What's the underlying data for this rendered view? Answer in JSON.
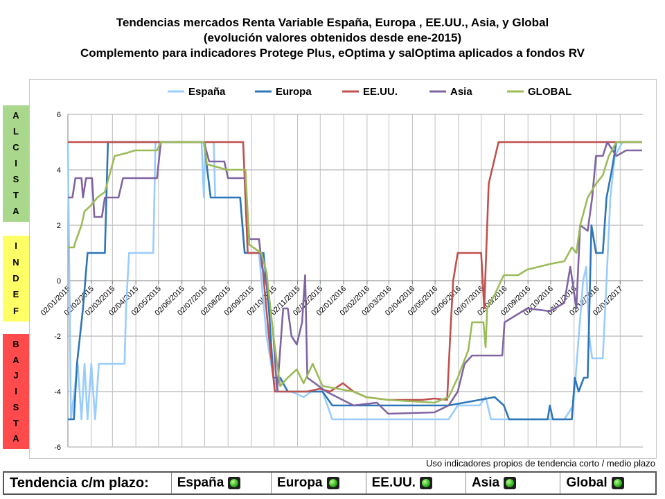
{
  "title": {
    "line1": "Tendencias mercados Renta Variable España, Europa , EE.UU., Asia, y Global",
    "line2": "(evolución valores  obtenidos desde ene-2015)",
    "line3": "Complemento para indicadores Protege Plus, eOptima y salOptima aplicados a fondos RV"
  },
  "zones": {
    "alcista": [
      "A",
      "L",
      "C",
      "I",
      "S",
      "T",
      "A"
    ],
    "indef": [
      "I",
      "N",
      "D",
      "E",
      "F"
    ],
    "bajista": [
      "B",
      "A",
      "J",
      "I",
      "S",
      "T",
      "A"
    ]
  },
  "footnote": "Uso indicadores propios de tendencia corto / medio plazo",
  "status_bar": {
    "label": "Tendencia c/m plazo:",
    "regions": [
      "España",
      "Europa",
      "EE.UU.",
      "Asia",
      "Global"
    ],
    "status_color": "#2fb11a"
  },
  "chart_data": {
    "type": "line",
    "ylim": [
      -6,
      6
    ],
    "yticks": [
      -6,
      -4,
      -2,
      0,
      2,
      4,
      6
    ],
    "xticks": [
      "02/01/2015",
      "02/02/2015",
      "02/03/2015",
      "02/04/2015",
      "02/05/2015",
      "02/06/2015",
      "02/07/2015",
      "02/08/2015",
      "02/09/2015",
      "02/10/2015",
      "02/11/2015",
      "02/12/2015",
      "02/01/2016",
      "02/02/2016",
      "02/03/2016",
      "02/04/2016",
      "02/05/2016",
      "02/06/2016",
      "02/07/2016",
      "02/08/2016",
      "02/09/2016",
      "02/10/2016",
      "02/11/2016",
      "02/12/2016",
      "02/01/2017"
    ],
    "grid": true,
    "legend_position": "top",
    "series": [
      {
        "name": "España",
        "color": "#99ccff",
        "points": [
          [
            "2015-01-02",
            5
          ],
          [
            "2015-01-06",
            -5
          ],
          [
            "2015-01-15",
            -3
          ],
          [
            "2015-01-20",
            -5
          ],
          [
            "2015-01-24",
            -3
          ],
          [
            "2015-01-28",
            -5
          ],
          [
            "2015-02-02",
            -3
          ],
          [
            "2015-02-07",
            -5
          ],
          [
            "2015-02-12",
            -3
          ],
          [
            "2015-03-18",
            -3
          ],
          [
            "2015-03-20",
            -1
          ],
          [
            "2015-03-24",
            1
          ],
          [
            "2015-04-25",
            1
          ],
          [
            "2015-04-28",
            5
          ],
          [
            "2015-06-28",
            5
          ],
          [
            "2015-07-01",
            3
          ],
          [
            "2015-07-03",
            5
          ],
          [
            "2015-07-14",
            5
          ],
          [
            "2015-07-16",
            3
          ],
          [
            "2015-07-25",
            3
          ],
          [
            "2015-08-05",
            3
          ],
          [
            "2015-08-18",
            3
          ],
          [
            "2015-08-24",
            1
          ],
          [
            "2015-09-12",
            1
          ],
          [
            "2015-09-22",
            -2
          ],
          [
            "2015-10-01",
            -3.5
          ],
          [
            "2015-10-08",
            -4
          ],
          [
            "2015-10-25",
            -4
          ],
          [
            "2015-11-10",
            -4.2
          ],
          [
            "2015-11-20",
            -4
          ],
          [
            "2015-12-05",
            -4
          ],
          [
            "2015-12-18",
            -5
          ],
          [
            "2016-05-20",
            -5
          ],
          [
            "2016-06-01",
            -4.5
          ],
          [
            "2016-06-30",
            -4.5
          ],
          [
            "2016-07-08",
            -4.2
          ],
          [
            "2016-07-15",
            -5
          ],
          [
            "2016-10-20",
            -5
          ],
          [
            "2016-11-01",
            -4.5
          ],
          [
            "2016-11-14",
            0
          ],
          [
            "2016-11-18",
            0.5
          ],
          [
            "2016-11-22",
            -2
          ],
          [
            "2016-11-26",
            -2.8
          ],
          [
            "2016-12-10",
            -2.8
          ],
          [
            "2016-12-15",
            0
          ],
          [
            "2016-12-20",
            3
          ],
          [
            "2016-12-26",
            4.5
          ],
          [
            "2017-01-05",
            5
          ],
          [
            "2017-01-31",
            5
          ]
        ]
      },
      {
        "name": "Europa",
        "color": "#2e75b6",
        "points": [
          [
            "2015-01-02",
            -5
          ],
          [
            "2015-01-10",
            -5
          ],
          [
            "2015-01-14",
            -3
          ],
          [
            "2015-01-22",
            -1
          ],
          [
            "2015-01-28",
            1
          ],
          [
            "2015-02-20",
            1
          ],
          [
            "2015-02-24",
            5
          ],
          [
            "2015-07-01",
            5
          ],
          [
            "2015-07-10",
            3
          ],
          [
            "2015-08-18",
            3
          ],
          [
            "2015-08-24",
            1
          ],
          [
            "2015-09-18",
            1
          ],
          [
            "2015-09-25",
            -1
          ],
          [
            "2015-10-01",
            -3.5
          ],
          [
            "2015-10-10",
            -3.5
          ],
          [
            "2015-10-20",
            -4
          ],
          [
            "2015-12-05",
            -4
          ],
          [
            "2015-12-18",
            -4.5
          ],
          [
            "2016-05-20",
            -4.5
          ],
          [
            "2016-07-20",
            -4.2
          ],
          [
            "2016-08-01",
            -4.5
          ],
          [
            "2016-08-08",
            -5
          ],
          [
            "2016-09-28",
            -5
          ],
          [
            "2016-10-01",
            -4.5
          ],
          [
            "2016-10-05",
            -5
          ],
          [
            "2016-10-30",
            -5
          ],
          [
            "2016-11-03",
            -3.5
          ],
          [
            "2016-11-08",
            -4
          ],
          [
            "2016-11-15",
            -3.5
          ],
          [
            "2016-11-20",
            -3.5
          ],
          [
            "2016-11-25",
            2
          ],
          [
            "2016-12-01",
            1
          ],
          [
            "2016-12-10",
            1
          ],
          [
            "2016-12-15",
            3
          ],
          [
            "2016-12-22",
            4
          ],
          [
            "2016-12-28",
            5
          ],
          [
            "2017-01-31",
            5
          ]
        ]
      },
      {
        "name": "EE.UU.",
        "color": "#c0504d",
        "points": [
          [
            "2015-01-02",
            5
          ],
          [
            "2015-08-22",
            5
          ],
          [
            "2015-08-28",
            1
          ],
          [
            "2015-09-15",
            1
          ],
          [
            "2015-09-25",
            -2
          ],
          [
            "2015-10-03",
            -4
          ],
          [
            "2015-11-15",
            -4
          ],
          [
            "2015-12-01",
            -3.9
          ],
          [
            "2015-12-15",
            -4
          ],
          [
            "2016-01-01",
            -3.7
          ],
          [
            "2016-01-15",
            -4
          ],
          [
            "2016-02-01",
            -4.2
          ],
          [
            "2016-03-01",
            -4.3
          ],
          [
            "2016-04-15",
            -4.3
          ],
          [
            "2016-05-01",
            -4.25
          ],
          [
            "2016-05-18",
            -4.3
          ],
          [
            "2016-05-22",
            -2
          ],
          [
            "2016-05-26",
            0
          ],
          [
            "2016-06-01",
            1
          ],
          [
            "2016-07-02",
            1
          ],
          [
            "2016-07-06",
            -1
          ],
          [
            "2016-07-12",
            3.5
          ],
          [
            "2016-07-25",
            5
          ],
          [
            "2017-01-31",
            5
          ]
        ]
      },
      {
        "name": "Asia",
        "color": "#8064a2",
        "points": [
          [
            "2015-01-02",
            3
          ],
          [
            "2015-01-08",
            3
          ],
          [
            "2015-01-12",
            3.7
          ],
          [
            "2015-01-20",
            3.7
          ],
          [
            "2015-01-22",
            3
          ],
          [
            "2015-01-26",
            3.7
          ],
          [
            "2015-02-03",
            3.7
          ],
          [
            "2015-02-06",
            2.3
          ],
          [
            "2015-02-16",
            2.3
          ],
          [
            "2015-02-20",
            3
          ],
          [
            "2015-03-10",
            3
          ],
          [
            "2015-03-16",
            3.7
          ],
          [
            "2015-04-30",
            3.7
          ],
          [
            "2015-05-05",
            5
          ],
          [
            "2015-07-01",
            5
          ],
          [
            "2015-07-08",
            4.3
          ],
          [
            "2015-07-28",
            4.3
          ],
          [
            "2015-08-02",
            3.7
          ],
          [
            "2015-08-25",
            3.7
          ],
          [
            "2015-08-30",
            1.5
          ],
          [
            "2015-09-12",
            1.5
          ],
          [
            "2015-09-16",
            0.5
          ],
          [
            "2015-09-25",
            -0.5
          ],
          [
            "2015-10-01",
            -2
          ],
          [
            "2015-10-06",
            -4
          ],
          [
            "2015-10-14",
            -1
          ],
          [
            "2015-10-20",
            -1
          ],
          [
            "2015-10-25",
            -2
          ],
          [
            "2015-11-01",
            -2.3
          ],
          [
            "2015-11-08",
            -1.5
          ],
          [
            "2015-11-12",
            0.2
          ],
          [
            "2015-11-15",
            -3.5
          ],
          [
            "2015-12-10",
            -4
          ],
          [
            "2016-01-15",
            -4.5
          ],
          [
            "2016-02-15",
            -4.4
          ],
          [
            "2016-03-01",
            -4.8
          ],
          [
            "2016-05-01",
            -4.75
          ],
          [
            "2016-05-20",
            -4.5
          ],
          [
            "2016-06-01",
            -4
          ],
          [
            "2016-06-10",
            -3
          ],
          [
            "2016-06-20",
            -2.7
          ],
          [
            "2016-07-30",
            -2.7
          ],
          [
            "2016-08-02",
            -1.5
          ],
          [
            "2016-08-20",
            -1.2
          ],
          [
            "2016-09-01",
            -1
          ],
          [
            "2016-10-01",
            -1.1
          ],
          [
            "2016-10-20",
            -0.8
          ],
          [
            "2016-10-28",
            0.5
          ],
          [
            "2016-11-05",
            -1
          ],
          [
            "2016-11-10",
            2
          ],
          [
            "2016-11-20",
            1.8
          ],
          [
            "2016-11-26",
            3
          ],
          [
            "2016-12-01",
            4.5
          ],
          [
            "2016-12-10",
            4.5
          ],
          [
            "2016-12-16",
            5
          ],
          [
            "2016-12-28",
            4.5
          ],
          [
            "2017-01-10",
            4.7
          ],
          [
            "2017-01-31",
            4.7
          ]
        ]
      },
      {
        "name": "GLOBAL",
        "color": "#9bbb59",
        "points": [
          [
            "2015-01-02",
            1.2
          ],
          [
            "2015-01-10",
            1.2
          ],
          [
            "2015-01-12",
            1.4
          ],
          [
            "2015-01-20",
            2
          ],
          [
            "2015-01-24",
            2.5
          ],
          [
            "2015-02-01",
            2.7
          ],
          [
            "2015-02-10",
            3
          ],
          [
            "2015-02-20",
            3.2
          ],
          [
            "2015-03-05",
            4.5
          ],
          [
            "2015-03-20",
            4.6
          ],
          [
            "2015-04-01",
            4.7
          ],
          [
            "2015-04-30",
            4.7
          ],
          [
            "2015-05-05",
            5
          ],
          [
            "2015-07-01",
            5
          ],
          [
            "2015-07-05",
            4.2
          ],
          [
            "2015-08-01",
            4
          ],
          [
            "2015-08-25",
            4
          ],
          [
            "2015-08-30",
            1.3
          ],
          [
            "2015-09-15",
            1
          ],
          [
            "2015-09-22",
            0.3
          ],
          [
            "2015-10-01",
            -2
          ],
          [
            "2015-10-10",
            -3.8
          ],
          [
            "2015-10-20",
            -3.5
          ],
          [
            "2015-11-01",
            -3.2
          ],
          [
            "2015-11-10",
            -3.7
          ],
          [
            "2015-11-22",
            -3
          ],
          [
            "2015-12-05",
            -3.8
          ],
          [
            "2016-01-15",
            -4
          ],
          [
            "2016-02-01",
            -4.2
          ],
          [
            "2016-03-01",
            -4.3
          ],
          [
            "2016-05-01",
            -4.4
          ],
          [
            "2016-05-20",
            -4.2
          ],
          [
            "2016-06-01",
            -3.5
          ],
          [
            "2016-06-15",
            -2.5
          ],
          [
            "2016-06-20",
            -1.5
          ],
          [
            "2016-07-05",
            -1.5
          ],
          [
            "2016-07-08",
            -2.4
          ],
          [
            "2016-07-10",
            -1
          ],
          [
            "2016-07-20",
            -0.5
          ],
          [
            "2016-08-01",
            0.2
          ],
          [
            "2016-08-20",
            0.2
          ],
          [
            "2016-09-01",
            0.4
          ],
          [
            "2016-10-01",
            0.6
          ],
          [
            "2016-10-20",
            0.7
          ],
          [
            "2016-10-30",
            1.2
          ],
          [
            "2016-11-05",
            1
          ],
          [
            "2016-11-10",
            2
          ],
          [
            "2016-11-20",
            3
          ],
          [
            "2016-12-01",
            3.5
          ],
          [
            "2016-12-10",
            3.8
          ],
          [
            "2016-12-18",
            4.5
          ],
          [
            "2016-12-28",
            5
          ],
          [
            "2017-01-31",
            5
          ]
        ]
      }
    ]
  }
}
